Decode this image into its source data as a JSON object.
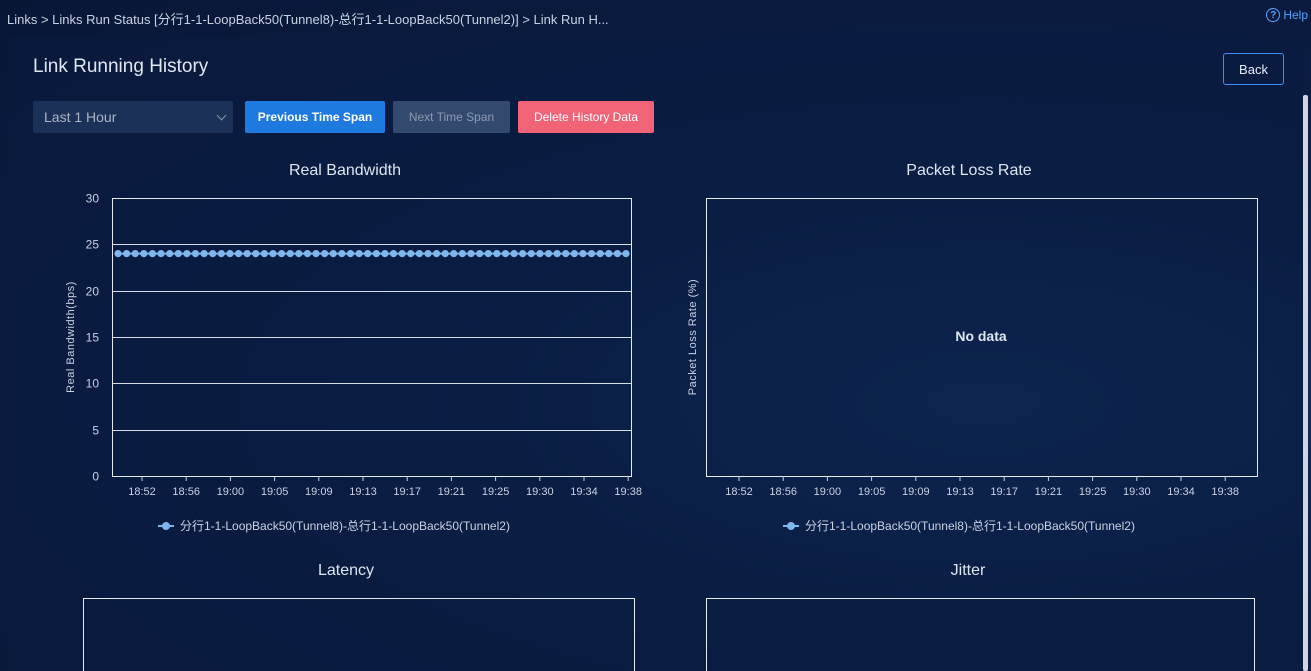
{
  "breadcrumb": "Links > Links Run Status [分行1-1-LoopBack50(Tunnel8)-总行1-1-LoopBack50(Tunnel2)] > Link Run H...",
  "help": {
    "label": "Help",
    "icon": "help-circle-icon"
  },
  "page_title": "Link Running History",
  "back_label": "Back",
  "time_range": {
    "value": "Last 1 Hour",
    "icon": "chevron-down-icon"
  },
  "toolbar": {
    "prev_label": "Previous Time Span",
    "next_label": "Next Time Span",
    "delete_label": "Delete History Data"
  },
  "colors": {
    "series": "#7eb6ee",
    "primary": "#1f7ae0",
    "danger": "#f16376",
    "accent_border": "#3f8cff"
  },
  "chart_data": [
    {
      "type": "line",
      "title": "Real Bandwidth",
      "ylabel": "Real Bandwidth(bps)",
      "ylim": [
        0,
        30
      ],
      "yticks": [
        0,
        5,
        10,
        15,
        20,
        25,
        30
      ],
      "x_ticks": [
        "18:52",
        "18:56",
        "19:00",
        "19:05",
        "19:09",
        "19:13",
        "19:17",
        "19:21",
        "19:25",
        "19:30",
        "19:34",
        "19:38"
      ],
      "grid": true,
      "legend_position": "bottom",
      "series": [
        {
          "name": "分行1-1-LoopBack50(Tunnel8)-总行1-1-LoopBack50(Tunnel2)",
          "values": [
            24,
            24,
            24,
            24,
            24,
            24,
            24,
            24,
            24,
            24,
            24,
            24,
            24,
            24,
            24,
            24,
            24,
            24,
            24,
            24,
            24,
            24,
            24,
            24,
            24,
            24,
            24,
            24,
            24,
            24,
            24,
            24,
            24,
            24,
            24,
            24,
            24,
            24,
            24,
            24,
            24,
            24,
            24,
            24,
            24,
            24,
            24,
            24,
            24,
            24,
            24,
            24,
            24,
            24,
            24,
            24,
            24,
            24,
            24,
            24
          ]
        }
      ]
    },
    {
      "type": "line",
      "title": "Packet Loss Rate",
      "ylabel": "Packet Loss Rate (%)",
      "x_ticks": [
        "18:52",
        "18:56",
        "19:00",
        "19:05",
        "19:09",
        "19:13",
        "19:17",
        "19:21",
        "19:25",
        "19:30",
        "19:34",
        "19:38"
      ],
      "empty_text": "No data",
      "legend_position": "bottom",
      "series": [
        {
          "name": "分行1-1-LoopBack50(Tunnel8)-总行1-1-LoopBack50(Tunnel2)",
          "values": []
        }
      ]
    },
    {
      "type": "line",
      "title": "Latency",
      "series": []
    },
    {
      "type": "line",
      "title": "Jitter",
      "series": []
    }
  ]
}
